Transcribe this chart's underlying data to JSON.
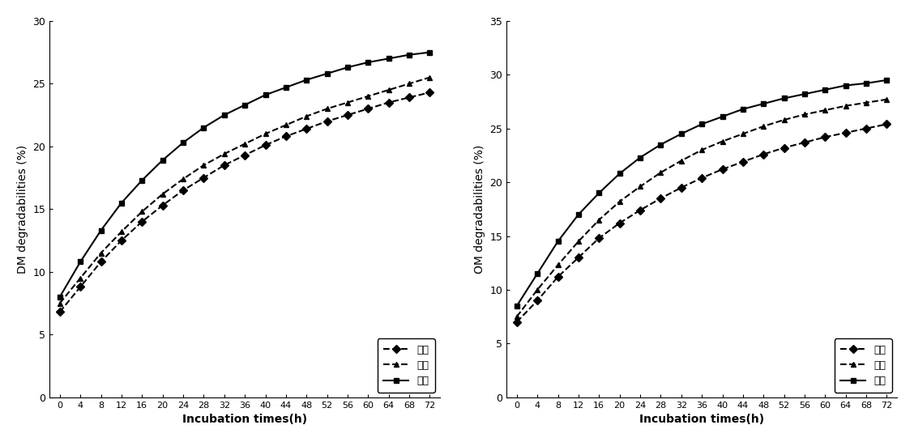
{
  "x": [
    0,
    4,
    8,
    12,
    16,
    20,
    24,
    28,
    32,
    36,
    40,
    44,
    48,
    52,
    56,
    60,
    64,
    68,
    72
  ],
  "dm_rice_straw": [
    6.8,
    8.8,
    10.8,
    12.5,
    14.0,
    15.3,
    16.5,
    17.5,
    18.5,
    19.3,
    20.1,
    20.8,
    21.4,
    22.0,
    22.5,
    23.0,
    23.5,
    23.9,
    24.3
  ],
  "dm_hay": [
    7.5,
    9.5,
    11.5,
    13.2,
    14.8,
    16.2,
    17.4,
    18.5,
    19.4,
    20.2,
    21.0,
    21.7,
    22.4,
    23.0,
    23.5,
    24.0,
    24.5,
    25.0,
    25.5
  ],
  "dm_reed": [
    8.0,
    10.8,
    13.3,
    15.5,
    17.3,
    18.9,
    20.3,
    21.5,
    22.5,
    23.3,
    24.1,
    24.7,
    25.3,
    25.8,
    26.3,
    26.7,
    27.0,
    27.3,
    27.5
  ],
  "om_rice_straw": [
    7.0,
    9.0,
    11.2,
    13.0,
    14.8,
    16.2,
    17.4,
    18.5,
    19.5,
    20.4,
    21.2,
    21.9,
    22.6,
    23.2,
    23.7,
    24.2,
    24.6,
    25.0,
    25.4
  ],
  "om_hay": [
    7.5,
    10.0,
    12.3,
    14.5,
    16.5,
    18.2,
    19.6,
    20.9,
    22.0,
    23.0,
    23.8,
    24.5,
    25.2,
    25.8,
    26.3,
    26.7,
    27.1,
    27.4,
    27.7
  ],
  "om_reed": [
    8.5,
    11.5,
    14.5,
    17.0,
    19.0,
    20.8,
    22.3,
    23.5,
    24.5,
    25.4,
    26.1,
    26.8,
    27.3,
    27.8,
    28.2,
    28.6,
    29.0,
    29.2,
    29.5
  ],
  "labels": [
    "볯짚",
    "건초",
    "갈대"
  ],
  "dm_ylabel": "DM degradabilities (%)",
  "om_ylabel": "OM degradabilities (%)",
  "xlabel": "Incubation times(h)",
  "dm_ylim": [
    0,
    30
  ],
  "om_ylim": [
    0,
    35
  ],
  "dm_yticks": [
    0,
    5,
    10,
    15,
    20,
    25,
    30
  ],
  "om_yticks": [
    0,
    5,
    10,
    15,
    20,
    25,
    30,
    35
  ],
  "xticks": [
    0,
    4,
    8,
    12,
    16,
    20,
    24,
    28,
    32,
    36,
    40,
    44,
    48,
    52,
    56,
    60,
    64,
    68,
    72
  ],
  "line_color": "#000000",
  "marker_rice": "D",
  "marker_hay": "^",
  "marker_reed": "s",
  "linestyle_rice": "--",
  "linestyle_hay": "--",
  "linestyle_reed": "-",
  "markersize": 5,
  "linewidth": 1.5,
  "legend_labels_korean": [
    "볯짚",
    "건초",
    "갈대"
  ]
}
